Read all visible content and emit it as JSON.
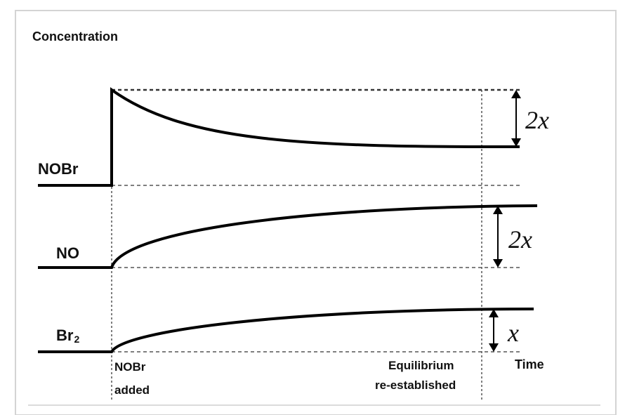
{
  "diagram": {
    "y_axis_label": "Concentration",
    "x_axis_label": "Time",
    "species": {
      "nobr": "NOBr",
      "no": "NO",
      "br2_base": "Br",
      "br2_subscript": "2"
    },
    "events": {
      "added_line1": "NOBr",
      "added_line2": "added",
      "eq_line1": "Equilibrium",
      "eq_line2": "re-established"
    },
    "changes": {
      "nobr": "2x",
      "no": "2x",
      "br2": "x"
    }
  }
}
